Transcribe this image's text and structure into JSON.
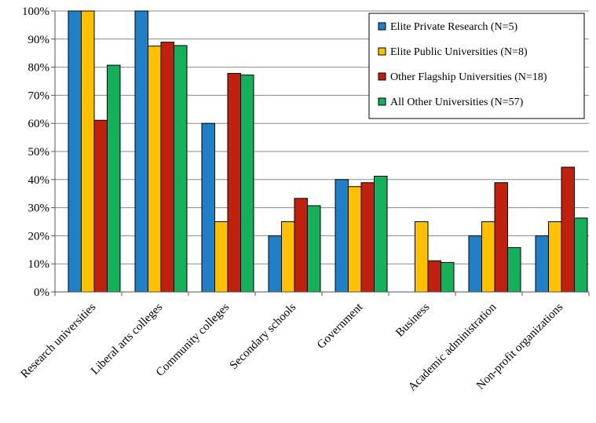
{
  "chart_data": {
    "type": "bar",
    "title": "",
    "xlabel": "",
    "ylabel": "",
    "ylim": [
      0,
      100
    ],
    "y_ticks": [
      "0%",
      "10%",
      "20%",
      "30%",
      "40%",
      "50%",
      "60%",
      "70%",
      "80%",
      "90%",
      "100%"
    ],
    "grid": true,
    "legend_position": "top-right",
    "categories": [
      "Research universities",
      "Liberal arts colleges",
      "Community colleges",
      "Secondary schools",
      "Government",
      "Business",
      "Academic administration",
      "Non-profit organizations"
    ],
    "series": [
      {
        "name": "Elite Private Research (N=5)",
        "color": "#1f7fc7",
        "values": [
          100,
          100,
          60,
          20,
          40,
          0,
          20,
          20
        ]
      },
      {
        "name": "Elite Public Universities (N=8)",
        "color": "#ffc000",
        "values": [
          100,
          87.5,
          25,
          25,
          37.5,
          25,
          25,
          25
        ]
      },
      {
        "name": "Other Flagship Universities (N=18)",
        "color": "#c0210e",
        "values": [
          61.1,
          88.9,
          77.8,
          33.3,
          38.9,
          11.1,
          38.9,
          44.4
        ]
      },
      {
        "name": "All Other Universities (N=57)",
        "color": "#14b05a",
        "values": [
          80.7,
          87.7,
          77.2,
          30.7,
          41.2,
          10.5,
          15.8,
          26.3
        ]
      }
    ]
  }
}
